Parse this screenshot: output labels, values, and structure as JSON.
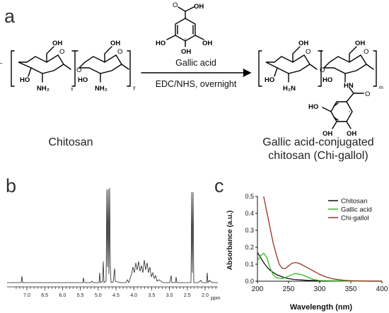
{
  "panels": {
    "a": "a",
    "b": "b",
    "c": "c"
  },
  "scheme": {
    "reagent_label": "Gallic acid",
    "conditions_label": "EDC/NHS, overnight",
    "reactant_name": "Chitosan",
    "product_name_line1": "Gallic acid-conjugated",
    "product_name_line2": "chitosan (Chi-gallol)",
    "atoms": {
      "oh": "OH",
      "ho": "HO",
      "o": "O",
      "nh2": "NH₂",
      "h2n": "H₂N",
      "hn": "HN",
      "sub_x": "x",
      "sub_y": "y",
      "sub_m": "m"
    }
  },
  "nmr": {
    "axis_unit": "ppm",
    "tick_labels": [
      "7.0",
      "6.5",
      "6.0",
      "5.5",
      "5.0",
      "4.5",
      "4.0",
      "3.5",
      "3.0",
      "2.5",
      "2.0"
    ]
  },
  "chart_data": {
    "type": "line",
    "xlabel": "Wavelength (nm)",
    "ylabel": "Absorbance (a.u.)",
    "xlim": [
      200,
      400
    ],
    "ylim": [
      0,
      0.5
    ],
    "x_ticks": [
      200,
      250,
      300,
      350,
      400
    ],
    "y_ticks": [
      0.0,
      0.1,
      0.2,
      0.3,
      0.4,
      0.5
    ],
    "legend_position": "top-right",
    "series": [
      {
        "name": "Chitosan",
        "color": "#111111",
        "x": [
          200,
          205,
          210,
          215,
          220,
          230,
          240,
          250,
          260,
          280,
          300,
          330,
          360,
          400
        ],
        "y": [
          0.17,
          0.14,
          0.11,
          0.085,
          0.065,
          0.04,
          0.025,
          0.015,
          0.01,
          0.005,
          0.003,
          0.002,
          0.001,
          0.0
        ]
      },
      {
        "name": "Gallic acid",
        "color": "#33bb22",
        "x": [
          200,
          205,
          210,
          215,
          220,
          225,
          230,
          240,
          250,
          260,
          270,
          280,
          290,
          300,
          320,
          350,
          400
        ],
        "y": [
          0.12,
          0.15,
          0.165,
          0.14,
          0.08,
          0.04,
          0.02,
          0.015,
          0.03,
          0.045,
          0.04,
          0.025,
          0.01,
          0.004,
          0.002,
          0.001,
          0.0
        ]
      },
      {
        "name": "Chi-gallol",
        "color": "#993322",
        "x": [
          210,
          215,
          220,
          225,
          230,
          235,
          240,
          245,
          250,
          255,
          260,
          265,
          270,
          280,
          290,
          300,
          310,
          320,
          330,
          340,
          350,
          360,
          380,
          400
        ],
        "y": [
          0.5,
          0.41,
          0.32,
          0.23,
          0.16,
          0.1,
          0.075,
          0.075,
          0.09,
          0.105,
          0.11,
          0.108,
          0.1,
          0.08,
          0.06,
          0.04,
          0.025,
          0.015,
          0.009,
          0.005,
          0.003,
          0.002,
          0.001,
          0.0
        ]
      }
    ]
  }
}
